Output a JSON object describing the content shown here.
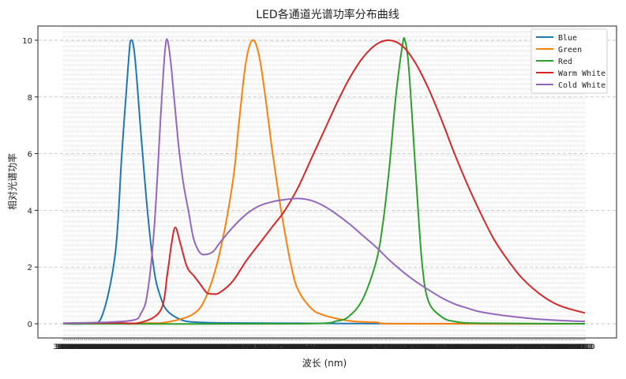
{
  "chart_data": {
    "type": "line",
    "title": "LED各通道光谱功率分布曲线",
    "xlabel": "波长 (nm)",
    "ylabel": "相对光谱功率",
    "x_range": [
      380,
      780
    ],
    "ylim": [
      -0.5,
      10.5
    ],
    "yticks": [
      0,
      2,
      4,
      6,
      8,
      10
    ],
    "grid": true,
    "legend_position": "top-right",
    "series": [
      {
        "name": "Blue",
        "color": "#1f77b4",
        "points": [
          [
            380,
            0
          ],
          [
            400,
            0.02
          ],
          [
            410,
            0.3
          ],
          [
            420,
            2.5
          ],
          [
            425,
            6.0
          ],
          [
            430,
            9.2
          ],
          [
            432,
            10.0
          ],
          [
            435,
            9.4
          ],
          [
            440,
            6.5
          ],
          [
            445,
            3.8
          ],
          [
            450,
            1.8
          ],
          [
            455,
            0.9
          ],
          [
            460,
            0.45
          ],
          [
            470,
            0.15
          ],
          [
            480,
            0.06
          ],
          [
            500,
            0.03
          ],
          [
            550,
            0.02
          ],
          [
            600,
            0.01
          ],
          [
            700,
            0.0
          ],
          [
            780,
            0.0
          ]
        ]
      },
      {
        "name": "Green",
        "color": "#ff7f0e",
        "points": [
          [
            380,
            0
          ],
          [
            440,
            0.02
          ],
          [
            460,
            0.06
          ],
          [
            480,
            0.35
          ],
          [
            490,
            1.0
          ],
          [
            500,
            2.5
          ],
          [
            510,
            5.0
          ],
          [
            515,
            7.2
          ],
          [
            520,
            9.2
          ],
          [
            525,
            10.0
          ],
          [
            530,
            9.5
          ],
          [
            535,
            8.0
          ],
          [
            540,
            6.2
          ],
          [
            545,
            4.6
          ],
          [
            550,
            3.2
          ],
          [
            555,
            2.0
          ],
          [
            560,
            1.2
          ],
          [
            570,
            0.55
          ],
          [
            580,
            0.3
          ],
          [
            600,
            0.1
          ],
          [
            620,
            0.05
          ],
          [
            640,
            0.0
          ],
          [
            780,
            0.0
          ]
        ]
      },
      {
        "name": "Red",
        "color": "#2ca02c",
        "points": [
          [
            380,
            0
          ],
          [
            560,
            0.0
          ],
          [
            590,
            0.1
          ],
          [
            600,
            0.3
          ],
          [
            610,
            0.9
          ],
          [
            620,
            2.2
          ],
          [
            625,
            3.5
          ],
          [
            630,
            5.5
          ],
          [
            635,
            8.0
          ],
          [
            640,
            9.8
          ],
          [
            642,
            10.0
          ],
          [
            645,
            9.0
          ],
          [
            650,
            5.5
          ],
          [
            655,
            2.2
          ],
          [
            660,
            0.8
          ],
          [
            670,
            0.25
          ],
          [
            680,
            0.08
          ],
          [
            700,
            0.02
          ],
          [
            780,
            0.0
          ]
        ]
      },
      {
        "name": "Warm White",
        "color": "#d62728",
        "points": [
          [
            380,
            0.02
          ],
          [
            420,
            0.03
          ],
          [
            440,
            0.05
          ],
          [
            455,
            0.5
          ],
          [
            460,
            1.8
          ],
          [
            463,
            2.8
          ],
          [
            466,
            3.4
          ],
          [
            470,
            2.8
          ],
          [
            475,
            2.0
          ],
          [
            480,
            1.7
          ],
          [
            485,
            1.4
          ],
          [
            490,
            1.1
          ],
          [
            495,
            1.05
          ],
          [
            500,
            1.1
          ],
          [
            510,
            1.5
          ],
          [
            520,
            2.2
          ],
          [
            530,
            2.8
          ],
          [
            540,
            3.4
          ],
          [
            550,
            4.0
          ],
          [
            560,
            4.8
          ],
          [
            570,
            5.8
          ],
          [
            580,
            6.8
          ],
          [
            590,
            7.8
          ],
          [
            600,
            8.7
          ],
          [
            610,
            9.4
          ],
          [
            620,
            9.85
          ],
          [
            630,
            10.0
          ],
          [
            640,
            9.8
          ],
          [
            650,
            9.2
          ],
          [
            660,
            8.3
          ],
          [
            670,
            7.2
          ],
          [
            680,
            6.0
          ],
          [
            690,
            4.9
          ],
          [
            700,
            3.9
          ],
          [
            710,
            3.0
          ],
          [
            720,
            2.3
          ],
          [
            730,
            1.7
          ],
          [
            740,
            1.25
          ],
          [
            750,
            0.9
          ],
          [
            760,
            0.65
          ],
          [
            770,
            0.5
          ],
          [
            780,
            0.38
          ]
        ]
      },
      {
        "name": "Cold White",
        "color": "#9467bd",
        "points": [
          [
            380,
            0.02
          ],
          [
            430,
            0.1
          ],
          [
            440,
            0.4
          ],
          [
            445,
            1.2
          ],
          [
            450,
            3.5
          ],
          [
            455,
            7.5
          ],
          [
            458,
            9.6
          ],
          [
            460,
            10.0
          ],
          [
            463,
            9.0
          ],
          [
            468,
            6.5
          ],
          [
            472,
            5.0
          ],
          [
            476,
            4.0
          ],
          [
            480,
            3.0
          ],
          [
            485,
            2.5
          ],
          [
            490,
            2.45
          ],
          [
            495,
            2.55
          ],
          [
            500,
            2.85
          ],
          [
            510,
            3.4
          ],
          [
            520,
            3.85
          ],
          [
            530,
            4.15
          ],
          [
            540,
            4.3
          ],
          [
            550,
            4.38
          ],
          [
            560,
            4.42
          ],
          [
            570,
            4.35
          ],
          [
            580,
            4.15
          ],
          [
            590,
            3.85
          ],
          [
            600,
            3.5
          ],
          [
            610,
            3.1
          ],
          [
            620,
            2.7
          ],
          [
            630,
            2.25
          ],
          [
            640,
            1.85
          ],
          [
            650,
            1.5
          ],
          [
            660,
            1.2
          ],
          [
            670,
            0.92
          ],
          [
            680,
            0.7
          ],
          [
            690,
            0.55
          ],
          [
            700,
            0.42
          ],
          [
            720,
            0.28
          ],
          [
            740,
            0.18
          ],
          [
            760,
            0.12
          ],
          [
            780,
            0.08
          ]
        ]
      }
    ]
  }
}
